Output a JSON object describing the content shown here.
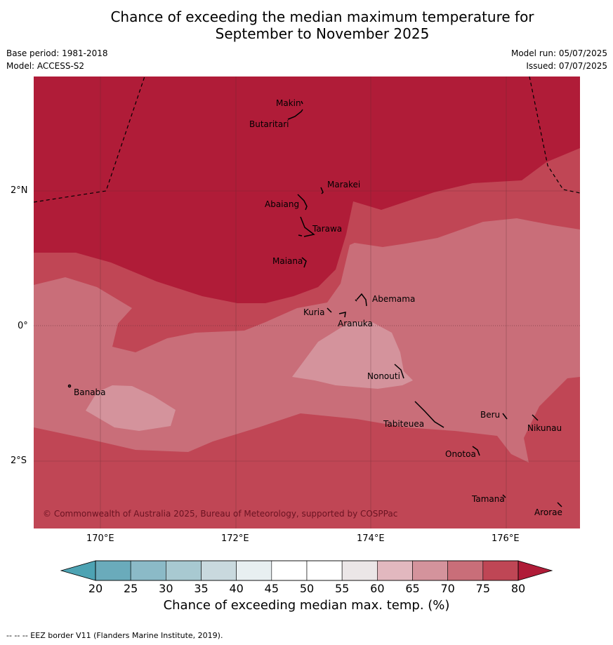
{
  "title_line1": "Chance of exceeding the median maximum temperature for",
  "title_line2": "September to November 2025",
  "base_period": "Base period: 1981-2018",
  "model": "Model: ACCESS-S2",
  "model_run": "Model run: 05/07/2025",
  "issued": "Issued: 07/07/2025",
  "lat_labels": [
    "2°N",
    "0°",
    "2°S"
  ],
  "lon_labels": [
    "170°E",
    "172°E",
    "174°E",
    "176°E"
  ],
  "places": [
    "Makin",
    "Butaritari",
    "Marakei",
    "Abaiang",
    "Tarawa",
    "Maiana",
    "Abemama",
    "Kuria",
    "Aranuka",
    "Nonouti",
    "Banaba",
    "Tabiteuea",
    "Beru",
    "Nikunau",
    "Onotoa",
    "Tamana",
    "Arorae"
  ],
  "copyright": "© Commonwealth of Australia 2025, Bureau of Meteorology, supported by COSPPac",
  "colorbar": {
    "ticks": [
      "20",
      "25",
      "30",
      "35",
      "40",
      "45",
      "50",
      "55",
      "60",
      "65",
      "70",
      "75",
      "80"
    ],
    "colors": [
      "#6aabbb",
      "#8bbac7",
      "#a8c9d1",
      "#c9d9de",
      "#e8eff1",
      "#ffffff",
      "#ffffff",
      "#ebe6e7",
      "#e2b8bf",
      "#d4939c",
      "#c96e79",
      "#bf4655"
    ],
    "low_color": "#4da3b3",
    "high_color": "#b01c38",
    "label": "Chance of exceeding median max. temp. (%)"
  },
  "footer": "--  --  -- EEZ border V11 (Flanders Marine Institute, 2019)."
}
